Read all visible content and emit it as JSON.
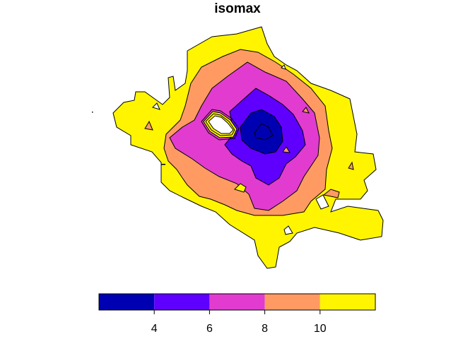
{
  "chart_data": {
    "type": "filled-contour",
    "title": "isomax",
    "xlabel": "",
    "ylabel": "",
    "levels": [
      2,
      4,
      6,
      8,
      10,
      12
    ],
    "colors": [
      "#0000B3",
      "#5F00FF",
      "#E13CCF",
      "#FF9B62",
      "#FFF500"
    ],
    "legend": {
      "position": "bottom",
      "tick_values": [
        4,
        6,
        8,
        10
      ],
      "tick_labels": [
        "4",
        "6",
        "8",
        "10"
      ],
      "range": [
        2,
        12
      ]
    },
    "contour_bands": [
      {
        "name": "yellow",
        "range": [
          10,
          12
        ]
      },
      {
        "name": "orange",
        "range": [
          8,
          10
        ]
      },
      {
        "name": "magenta",
        "range": [
          6,
          8
        ]
      },
      {
        "name": "purple",
        "range": [
          4,
          6
        ]
      },
      {
        "name": "blue",
        "range": [
          2,
          4
        ]
      }
    ],
    "grid": false,
    "axes_shown": false
  }
}
